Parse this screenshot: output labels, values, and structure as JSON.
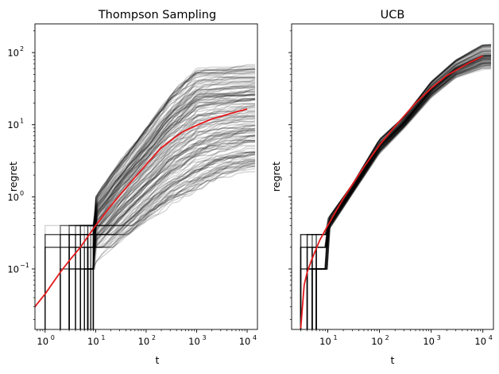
{
  "chart_data": [
    {
      "type": "line",
      "title": "Thompson Sampling",
      "xlabel": "t",
      "ylabel": "regret",
      "xscale": "log",
      "yscale": "log",
      "xlim": [
        0.63,
        16000
      ],
      "ylim": [
        0.0145,
        250
      ],
      "xticks": [
        {
          "value": 1,
          "base": "10",
          "exp": "0"
        },
        {
          "value": 10,
          "base": "10",
          "exp": "1"
        },
        {
          "value": 100,
          "base": "10",
          "exp": "2"
        },
        {
          "value": 1000,
          "base": "10",
          "exp": "3"
        },
        {
          "value": 10000,
          "base": "10",
          "exp": "4"
        }
      ],
      "yticks": [
        {
          "value": 0.1,
          "base": "10",
          "exp": "−1"
        },
        {
          "value": 1,
          "base": "10",
          "exp": "0"
        },
        {
          "value": 10,
          "base": "10",
          "exp": "1"
        },
        {
          "value": 100,
          "base": "10",
          "exp": "2"
        }
      ],
      "grid": false,
      "runs_color": "#000000",
      "mean_color": "#e41a1c",
      "mean_series": {
        "x": [
          0.63,
          1,
          2,
          3,
          5,
          10,
          20,
          50,
          100,
          200,
          500,
          1000,
          2000,
          5000,
          10000
        ],
        "y": [
          0.03,
          0.045,
          0.09,
          0.13,
          0.2,
          0.4,
          0.75,
          1.6,
          2.8,
          4.8,
          7.8,
          9.8,
          12,
          14.5,
          16.5
        ]
      },
      "runs_envelope": {
        "x": [
          10,
          30,
          100,
          300,
          1000,
          3000,
          10000
        ],
        "y_low": [
          0.1,
          0.22,
          0.45,
          0.8,
          1.2,
          1.8,
          2.3
        ],
        "y_high": [
          1.0,
          3.0,
          9.0,
          25,
          55,
          57,
          58
        ]
      }
    },
    {
      "type": "line",
      "title": "UCB",
      "xlabel": "t",
      "ylabel": "regret",
      "xscale": "log",
      "yscale": "log",
      "xlim": [
        2.0,
        16000
      ],
      "ylim": [
        0.0145,
        250
      ],
      "xticks": [
        {
          "value": 10,
          "base": "10",
          "exp": "1"
        },
        {
          "value": 100,
          "base": "10",
          "exp": "2"
        },
        {
          "value": 1000,
          "base": "10",
          "exp": "3"
        },
        {
          "value": 10000,
          "base": "10",
          "exp": "4"
        }
      ],
      "yticks": [
        {
          "value": 0.1,
          "base": "10",
          "exp": "−1"
        },
        {
          "value": 1,
          "base": "10",
          "exp": "0"
        },
        {
          "value": 10,
          "base": "10",
          "exp": "1"
        },
        {
          "value": 100,
          "base": "10",
          "exp": "2"
        }
      ],
      "show_ytick_labels": false,
      "grid": false,
      "runs_color": "#000000",
      "mean_color": "#e41a1c",
      "mean_series": {
        "x": [
          3,
          3.5,
          4,
          5,
          7,
          10,
          20,
          50,
          100,
          200,
          500,
          1000,
          2000,
          5000,
          10000
        ],
        "y": [
          0.015,
          0.06,
          0.09,
          0.14,
          0.25,
          0.4,
          0.95,
          2.6,
          5.2,
          9.5,
          20,
          32,
          48,
          70,
          90
        ]
      },
      "runs_envelope": {
        "x": [
          10,
          30,
          100,
          300,
          1000,
          3000,
          10000
        ],
        "y_low": [
          0.33,
          1.1,
          4.0,
          9.0,
          24,
          45,
          60
        ],
        "y_high": [
          0.5,
          1.5,
          6.3,
          13,
          40,
          80,
          130
        ]
      }
    }
  ]
}
